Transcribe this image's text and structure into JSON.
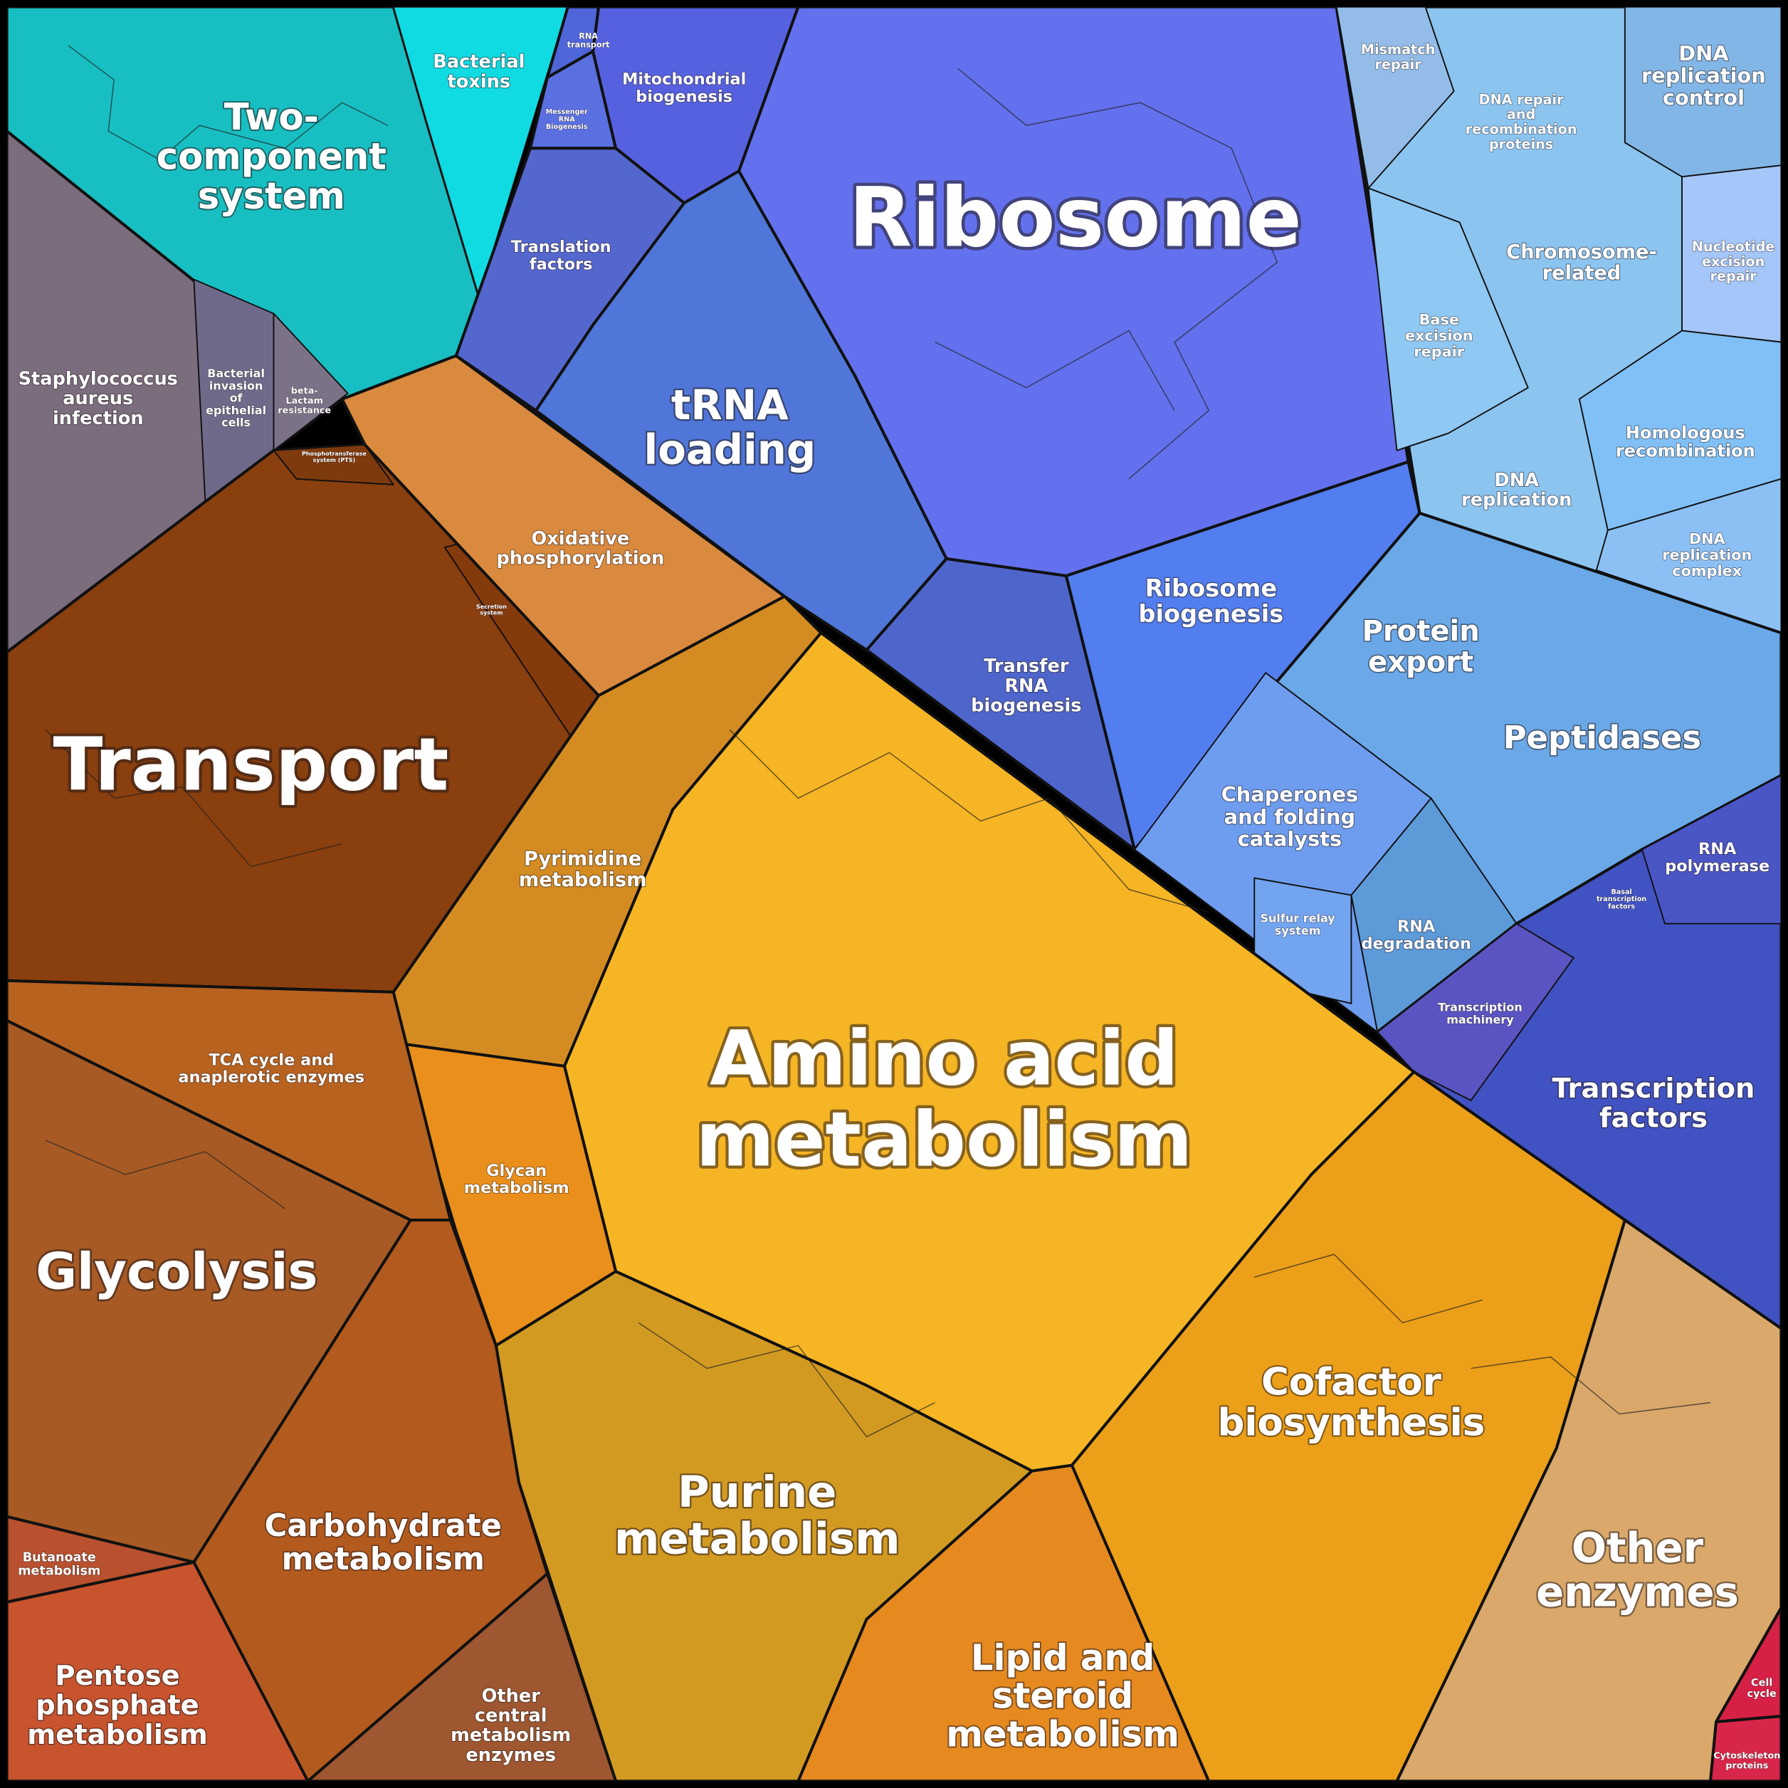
{
  "regions": [
    {
      "lines": [
        "Two-",
        "component",
        "system"
      ]
    },
    {
      "lines": [
        "Bacterial",
        "toxins"
      ]
    },
    {
      "lines": [
        "RNA",
        "transport"
      ]
    },
    {
      "lines": [
        "Messenger",
        "RNA",
        "Biogenesis"
      ]
    },
    {
      "lines": [
        "Mitochondrial",
        "biogenesis"
      ]
    },
    {
      "lines": [
        "Translation",
        "factors"
      ]
    },
    {
      "lines": [
        "tRNA",
        "loading"
      ]
    },
    {
      "lines": [
        "Ribosome"
      ]
    },
    {
      "lines": [
        "Ribosome",
        "biogenesis"
      ]
    },
    {
      "lines": [
        "Transfer",
        "RNA",
        "biogenesis"
      ]
    },
    {
      "lines": [
        "Mismatch",
        "repair"
      ]
    },
    {
      "lines": [
        "DNA repair",
        "and",
        "recombination",
        "proteins"
      ]
    },
    {
      "lines": [
        "DNA",
        "replication",
        "control"
      ]
    },
    {
      "lines": [
        "Chromosome-",
        "related"
      ]
    },
    {
      "lines": [
        "Nucleotide",
        "excision",
        "repair"
      ]
    },
    {
      "lines": [
        "Base",
        "excision",
        "repair"
      ]
    },
    {
      "lines": [
        "Homologous",
        "recombination"
      ]
    },
    {
      "lines": [
        "DNA",
        "replication"
      ]
    },
    {
      "lines": [
        "DNA",
        "replication",
        "complex"
      ]
    },
    {
      "lines": [
        "Protein",
        "export"
      ]
    },
    {
      "lines": [
        "Peptidases"
      ]
    },
    {
      "lines": [
        "Chaperones",
        "and folding",
        "catalysts"
      ]
    },
    {
      "lines": [
        "Sulfur relay",
        "system"
      ]
    },
    {
      "lines": [
        "RNA",
        "degradation"
      ]
    },
    {
      "lines": [
        "RNA",
        "polymerase"
      ]
    },
    {
      "lines": [
        "Basal",
        "transcription",
        "factors"
      ]
    },
    {
      "lines": [
        "Transcription",
        "machinery"
      ]
    },
    {
      "lines": [
        "Transcription",
        "factors"
      ]
    },
    {
      "lines": [
        "Staphylococcus",
        "aureus",
        "infection"
      ]
    },
    {
      "lines": [
        "Bacterial",
        "invasion",
        "of",
        "epithelial",
        "cells"
      ]
    },
    {
      "lines": [
        "beta-",
        "Lactam",
        "resistance"
      ]
    },
    {
      "lines": [
        "Phosphotransferase",
        "system (PTS)"
      ]
    },
    {
      "lines": [
        "Secretion",
        "system"
      ]
    },
    {
      "lines": [
        "Transport"
      ]
    },
    {
      "lines": [
        "Oxidative",
        "phosphorylation"
      ]
    },
    {
      "lines": [
        "Pyrimidine",
        "metabolism"
      ]
    },
    {
      "lines": [
        "Amino acid",
        "metabolism"
      ]
    },
    {
      "lines": [
        "Glycan",
        "metabolism"
      ]
    },
    {
      "lines": [
        "TCA cycle and",
        "anaplerotic enzymes"
      ]
    },
    {
      "lines": [
        "Glycolysis"
      ]
    },
    {
      "lines": [
        "Carbohydrate",
        "metabolism"
      ]
    },
    {
      "lines": [
        "Butanoate",
        "metabolism"
      ]
    },
    {
      "lines": [
        "Pentose",
        "phosphate",
        "metabolism"
      ]
    },
    {
      "lines": [
        "Other",
        "central",
        "metabolism",
        "enzymes"
      ]
    },
    {
      "lines": [
        "Purine",
        "metabolism"
      ]
    },
    {
      "lines": [
        "Lipid and",
        "steroid",
        "metabolism"
      ]
    },
    {
      "lines": [
        "Cofactor",
        "biosynthesis"
      ]
    },
    {
      "lines": [
        "Other",
        "enzymes"
      ]
    },
    {
      "lines": [
        "Cell",
        "cycle"
      ]
    },
    {
      "lines": [
        "Cytoskeleton",
        "proteins"
      ]
    }
  ]
}
